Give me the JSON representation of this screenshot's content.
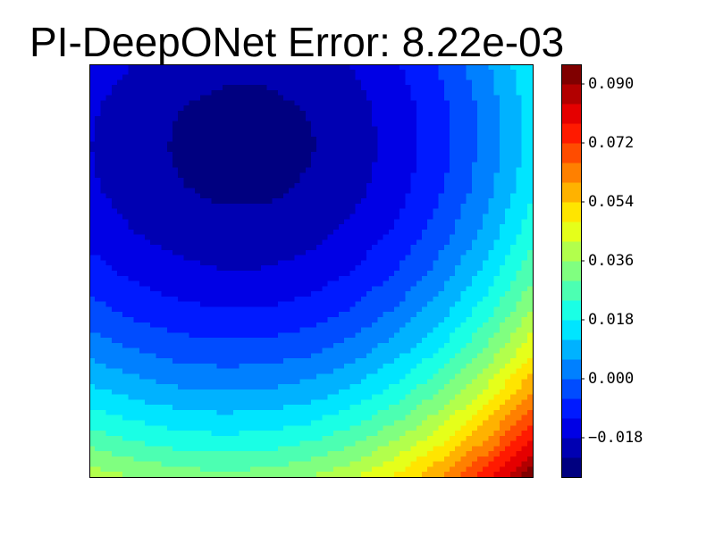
{
  "chart_data": {
    "type": "contour",
    "title": "PI-DeepONet Error: 8.22e-03",
    "z": [
      [
        -0.0143,
        -0.0182,
        -0.0211,
        -0.0225,
        -0.0225,
        -0.0209,
        -0.0174,
        -0.012,
        -0.0045,
        0.0054,
        0.0177
      ],
      [
        -0.017,
        -0.0209,
        -0.0238,
        -0.0252,
        -0.0252,
        -0.0236,
        -0.0201,
        -0.0146,
        -0.007,
        0.0029,
        0.0153
      ],
      [
        -0.0179,
        -0.0218,
        -0.0247,
        -0.0261,
        -0.0261,
        -0.0244,
        -0.0208,
        -0.0153,
        -0.0076,
        0.0025,
        0.015
      ],
      [
        -0.017,
        -0.0209,
        -0.0237,
        -0.0252,
        -0.0251,
        -0.0233,
        -0.0197,
        -0.014,
        -0.0061,
        0.0042,
        0.0171
      ],
      [
        -0.0143,
        -0.0182,
        -0.021,
        -0.0224,
        -0.0223,
        -0.0204,
        -0.0166,
        -0.0108,
        -0.0026,
        0.0081,
        0.0214
      ],
      [
        -0.0098,
        -0.0137,
        -0.0165,
        -0.0179,
        -0.0177,
        -0.0157,
        -0.0117,
        -0.0055,
        0.003,
        0.0141,
        0.028
      ],
      [
        -0.0035,
        -0.0074,
        -0.0102,
        -0.0115,
        -0.0112,
        -0.0091,
        -0.0049,
        0.0016,
        0.0106,
        0.0222,
        0.0368
      ],
      [
        0.0046,
        0.0007,
        -0.0021,
        -0.0033,
        -0.0029,
        -0.0006,
        0.0039,
        0.0108,
        0.0202,
        0.0325,
        0.0479
      ],
      [
        0.0145,
        0.0106,
        0.0079,
        0.0067,
        0.0072,
        0.0097,
        0.0145,
        0.0218,
        0.0319,
        0.0449,
        0.0612
      ],
      [
        0.0262,
        0.0223,
        0.0196,
        0.0185,
        0.0191,
        0.0219,
        0.0271,
        0.0349,
        0.0456,
        0.0595,
        0.0769
      ],
      [
        0.0397,
        0.0358,
        0.0331,
        0.0321,
        0.0329,
        0.036,
        0.0415,
        0.0499,
        0.0613,
        0.0762,
        0.0947
      ]
    ],
    "levels": [
      -0.03,
      -0.024,
      -0.018,
      -0.012,
      -0.006,
      0,
      0.006,
      0.012,
      0.018,
      0.024,
      0.03,
      0.036,
      0.042,
      0.048,
      0.054,
      0.06,
      0.066,
      0.072,
      0.078,
      0.084,
      0.09,
      0.096
    ],
    "colors": [
      "#000080",
      "#0000b2",
      "#0000e5",
      "#001aff",
      "#004cff",
      "#0080ff",
      "#00b2ff",
      "#00e5ff",
      "#1affe5",
      "#4cffb2",
      "#80ff80",
      "#b2ff4c",
      "#e5ff1a",
      "#ffe500",
      "#ffb200",
      "#ff8000",
      "#ff4c00",
      "#ff1a00",
      "#e50000",
      "#b20000",
      "#800000"
    ],
    "colorbar_ticks": [
      {
        "value": 0.09,
        "label": "0.090"
      },
      {
        "value": 0.072,
        "label": "0.072"
      },
      {
        "value": 0.054,
        "label": "0.054"
      },
      {
        "value": 0.036,
        "label": "0.036"
      },
      {
        "value": 0.018,
        "label": "0.018"
      },
      {
        "value": 0,
        "label": "0.000"
      },
      {
        "value": -0.018,
        "label": "−0.018"
      }
    ]
  }
}
